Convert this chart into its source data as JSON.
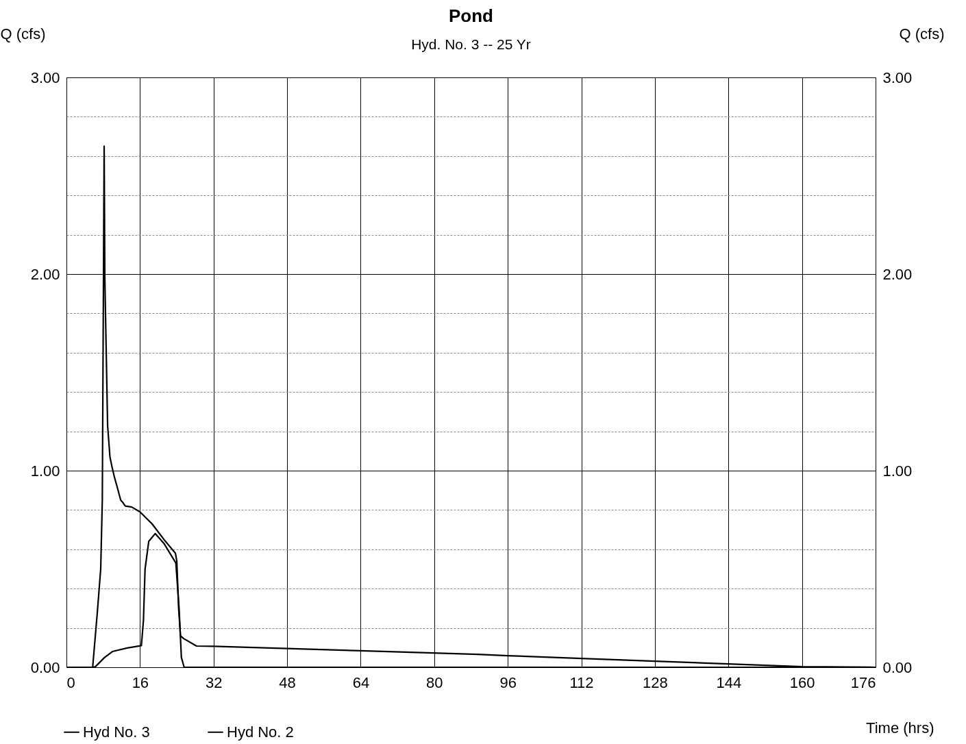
{
  "chart_data": {
    "type": "line",
    "title": "Pond",
    "subtitle": "Hyd. No. 3 -- 25 Yr",
    "ylabel": "Q (cfs)",
    "y2label": "Q (cfs)",
    "xlabel": "Time (hrs)",
    "xlim": [
      0,
      176
    ],
    "xticks": [
      0,
      16,
      32,
      48,
      64,
      80,
      96,
      112,
      128,
      144,
      160,
      176
    ],
    "ylim": [
      0,
      3
    ],
    "yticks": [
      {
        "value": 0,
        "label": "0.00"
      },
      {
        "value": 0.2,
        "label": null
      },
      {
        "value": 0.4,
        "label": null
      },
      {
        "value": 0.6,
        "label": null
      },
      {
        "value": 0.8,
        "label": null
      },
      {
        "value": 1,
        "label": "1.00"
      },
      {
        "value": 1.2,
        "label": null
      },
      {
        "value": 1.4,
        "label": null
      },
      {
        "value": 1.6,
        "label": null
      },
      {
        "value": 1.8,
        "label": null
      },
      {
        "value": 2,
        "label": "2.00"
      },
      {
        "value": 2.2,
        "label": null
      },
      {
        "value": 2.4,
        "label": null
      },
      {
        "value": 2.6,
        "label": null
      },
      {
        "value": 2.8,
        "label": null
      },
      {
        "value": 3,
        "label": "3.00"
      }
    ],
    "y2lim": [
      0,
      3
    ],
    "y2ticks": [
      {
        "value": 0,
        "label": "0.00"
      },
      {
        "value": 1,
        "label": "1.00"
      },
      {
        "value": 2,
        "label": "2.00"
      },
      {
        "value": 3,
        "label": "3.00"
      }
    ],
    "grid": true,
    "legend": "bottom",
    "marker": "none",
    "line_style": "solid",
    "series": [
      {
        "name": "Hyd No. 3",
        "color": "#000000",
        "x": [
          0,
          5.7,
          6.3,
          8.3,
          10.0,
          13.2,
          16.3,
          16.75,
          17.1,
          17.9,
          19.3,
          21.2,
          23.8,
          24.5,
          25.0,
          25.6,
          176
        ],
        "values": [
          0,
          0,
          0.003,
          0.05,
          0.08,
          0.098,
          0.11,
          0.24,
          0.5,
          0.64,
          0.68,
          0.63,
          0.53,
          0.3,
          0.05,
          0,
          0
        ]
      },
      {
        "name": "Hyd No. 2",
        "color": "#000000",
        "x": [
          0,
          5.7,
          6.7,
          7.45,
          7.8,
          8.2,
          8.35,
          8.95,
          9.46,
          9.9,
          10.4,
          11.0,
          11.8,
          12.2,
          12.5,
          12.8,
          14.2,
          16.0,
          18.6,
          21.2,
          23.7,
          24.0,
          24.4,
          24.8,
          25.5,
          28.3,
          32,
          64,
          89.4,
          96,
          112,
          128,
          144,
          160,
          176
        ],
        "values": [
          0,
          0,
          0.275,
          0.5,
          0.85,
          2.65,
          1.98,
          1.23,
          1.07,
          1.02,
          0.97,
          0.92,
          0.85,
          0.84,
          0.83,
          0.82,
          0.815,
          0.79,
          0.73,
          0.65,
          0.58,
          0.54,
          0.3,
          0.16,
          0.146,
          0.108,
          0.107,
          0.084,
          0.066,
          0.059,
          0.045,
          0.031,
          0.017,
          0.003,
          0
        ]
      }
    ]
  }
}
